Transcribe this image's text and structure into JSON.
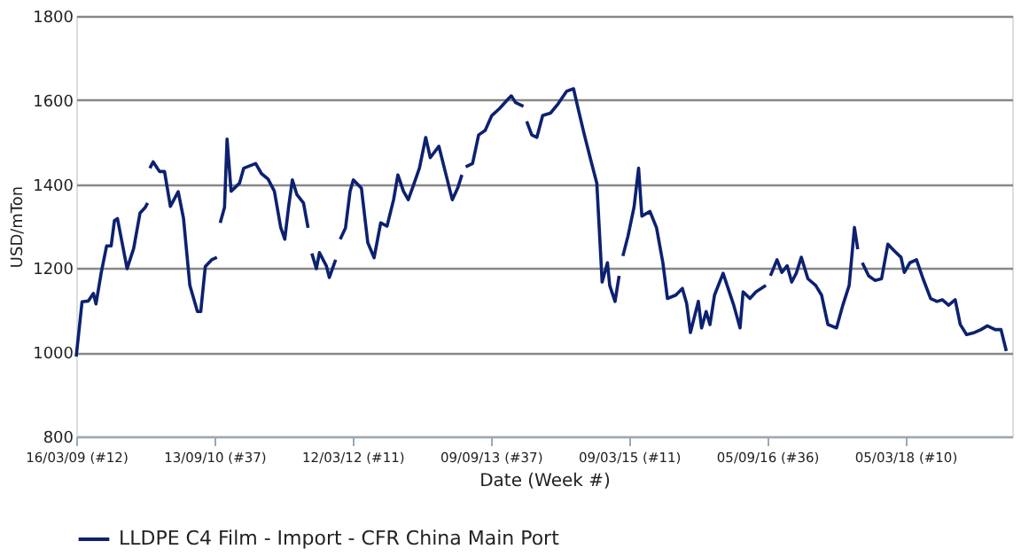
{
  "chart_data": {
    "type": "line",
    "xlabel": "Date (Week #)",
    "ylabel": "USD/mTon",
    "ylim": [
      800,
      1800
    ],
    "yticks": [
      800,
      1000,
      1200,
      1400,
      1600,
      1800
    ],
    "xlim": [
      "2009-03-16",
      "2019-05-01"
    ],
    "xticks": [
      {
        "value": "2009-03-16",
        "label": "16/03/09 (#12)"
      },
      {
        "value": "2010-09-13",
        "label": "13/09/10 (#37)"
      },
      {
        "value": "2012-03-12",
        "label": "12/03/12 (#11)"
      },
      {
        "value": "2013-09-09",
        "label": "09/09/13 (#37)"
      },
      {
        "value": "2015-03-09",
        "label": "09/03/15 (#11)"
      },
      {
        "value": "2016-09-05",
        "label": "05/09/16 (#36)"
      },
      {
        "value": "2018-03-05",
        "label": "05/03/18 (#10)"
      }
    ],
    "grid": "y",
    "legend": "bottom",
    "marker": "none",
    "line_style": "solid",
    "series": [
      {
        "name": "LLDPE C4 Film - Import - CFR China Main Port",
        "color": "#0d2170",
        "x": [
          "2009-03-16",
          "2009-04-08",
          "2009-05-03",
          "2009-05-23",
          "2009-06-02",
          "2009-06-23",
          "2009-07-14",
          "2009-08-01",
          "2009-08-14",
          "2009-08-26",
          "2009-10-03",
          "2009-10-29",
          "2009-11-23",
          "2009-12-14",
          "2009-12-23",
          "2009-12-28",
          "2010-01-01",
          "2010-01-14",
          "2010-02-08",
          "2010-02-28",
          "2010-03-23",
          "2010-04-23",
          "2010-05-14",
          "2010-06-08",
          "2010-07-08",
          "2010-07-21",
          "2010-08-08",
          "2010-09-02",
          "2010-09-23",
          "2010-09-28",
          "2010-10-06",
          "2010-10-23",
          "2010-11-02",
          "2010-11-18",
          "2010-12-21",
          "2011-01-07",
          "2011-02-23",
          "2011-03-18",
          "2011-04-13",
          "2011-05-08",
          "2011-06-02",
          "2011-06-18",
          "2011-07-03",
          "2011-07-18",
          "2011-08-05",
          "2011-08-31",
          "2011-09-18",
          "2011-09-23",
          "2011-10-03",
          "2011-10-21",
          "2011-11-02",
          "2011-11-29",
          "2011-12-11",
          "2012-01-05",
          "2012-01-10",
          "2012-01-23",
          "2012-02-13",
          "2012-03-02",
          "2012-03-15",
          "2012-04-16",
          "2012-05-11",
          "2012-06-05",
          "2012-07-01",
          "2012-07-26",
          "2012-08-21",
          "2012-09-07",
          "2012-09-29",
          "2012-10-18",
          "2012-11-05",
          "2012-12-01",
          "2012-12-26",
          "2013-01-13",
          "2013-02-16",
          "2013-03-13",
          "2013-04-10",
          "2013-05-01",
          "2013-05-18",
          "2013-05-23",
          "2013-06-02",
          "2013-06-29",
          "2013-07-23",
          "2013-08-18",
          "2013-09-13",
          "2013-10-14",
          "2013-11-13",
          "2013-11-29",
          "2013-12-16",
          "2014-01-16",
          "2014-01-20",
          "2014-01-29",
          "2014-02-18",
          "2014-03-10",
          "2014-04-02",
          "2014-05-03",
          "2014-06-02",
          "2014-07-06",
          "2014-08-02",
          "2014-08-18",
          "2014-09-13",
          "2014-10-11",
          "2014-11-02",
          "2014-11-23",
          "2014-12-14",
          "2014-12-23",
          "2015-01-13",
          "2015-01-29",
          "2015-02-03",
          "2015-02-13",
          "2015-03-05",
          "2015-03-29",
          "2015-04-16",
          "2015-04-29",
          "2015-05-31",
          "2015-06-26",
          "2015-07-21",
          "2015-08-08",
          "2015-09-10",
          "2015-10-06",
          "2015-10-23",
          "2015-11-07",
          "2015-12-08",
          "2015-12-21",
          "2016-01-08",
          "2016-01-23",
          "2016-02-10",
          "2016-03-15",
          "2016-03-31",
          "2016-04-26",
          "2016-05-21",
          "2016-06-02",
          "2016-06-29",
          "2016-07-23",
          "2016-08-31",
          "2016-09-05",
          "2016-09-18",
          "2016-10-14",
          "2016-11-02",
          "2016-11-23",
          "2016-12-11",
          "2016-12-29",
          "2017-01-18",
          "2017-02-13",
          "2017-03-16",
          "2017-04-08",
          "2017-05-03",
          "2017-06-06",
          "2017-07-01",
          "2017-07-26",
          "2017-08-16",
          "2017-08-29",
          "2017-09-02",
          "2017-09-16",
          "2017-10-11",
          "2017-11-05",
          "2017-12-01",
          "2017-12-26",
          "2018-01-21",
          "2018-02-16",
          "2018-03-01",
          "2018-03-23",
          "2018-04-18",
          "2018-05-14",
          "2018-06-13",
          "2018-07-08",
          "2018-07-29",
          "2018-08-23",
          "2018-09-18",
          "2018-10-08",
          "2018-11-02",
          "2018-12-03",
          "2018-12-29",
          "2019-01-23",
          "2019-02-23",
          "2019-03-18",
          "2019-04-08"
        ],
        "values": [
          990,
          1120,
          1122,
          1140,
          1115,
          1190,
          1253,
          1253,
          1313,
          1318,
          1199,
          1247,
          1331,
          1345,
          1355,
          null,
          1438,
          1453,
          1430,
          1430,
          1347,
          1382,
          1318,
          1159,
          1097,
          1097,
          1204,
          1220,
          1226,
          null,
          1308,
          1345,
          1507,
          1383,
          1402,
          1438,
          1449,
          1425,
          1412,
          1383,
          1297,
          1269,
          1345,
          1410,
          1375,
          1355,
          1296,
          null,
          1235,
          1199,
          1237,
          1206,
          1178,
          1220,
          null,
          1269,
          1296,
          1383,
          1410,
          1390,
          1261,
          1225,
          1308,
          1300,
          1363,
          1422,
          1383,
          1363,
          1393,
          1438,
          1511,
          1463,
          1490,
          1430,
          1363,
          1390,
          1422,
          null,
          1441,
          1449,
          1517,
          1528,
          1563,
          1580,
          1600,
          1610,
          1594,
          1585,
          null,
          1549,
          1517,
          1511,
          1563,
          1569,
          1591,
          1621,
          1627,
          1585,
          1519,
          1453,
          1402,
          1167,
          1213,
          1159,
          1121,
          1182,
          null,
          1229,
          1276,
          1345,
          1438,
          1324,
          1335,
          1296,
          1213,
          1128,
          1136,
          1152,
          1116,
          1047,
          1121,
          1058,
          1097,
          1066,
          1136,
          1188,
          1159,
          1112,
          1058,
          1144,
          1128,
          1144,
          1159,
          null,
          1182,
          1220,
          1190,
          1206,
          1167,
          1188,
          1226,
          1175,
          1159,
          1136,
          1066,
          1058,
          1112,
          1159,
          1297,
          1245,
          null,
          1213,
          1182,
          1171,
          1175,
          1257,
          1241,
          1226,
          1190,
          1213,
          1220,
          1175,
          1128,
          1121,
          1125,
          1112,
          1125,
          1066,
          1042,
          1047,
          1054,
          1063,
          1054,
          1054,
          1003
        ]
      }
    ]
  }
}
